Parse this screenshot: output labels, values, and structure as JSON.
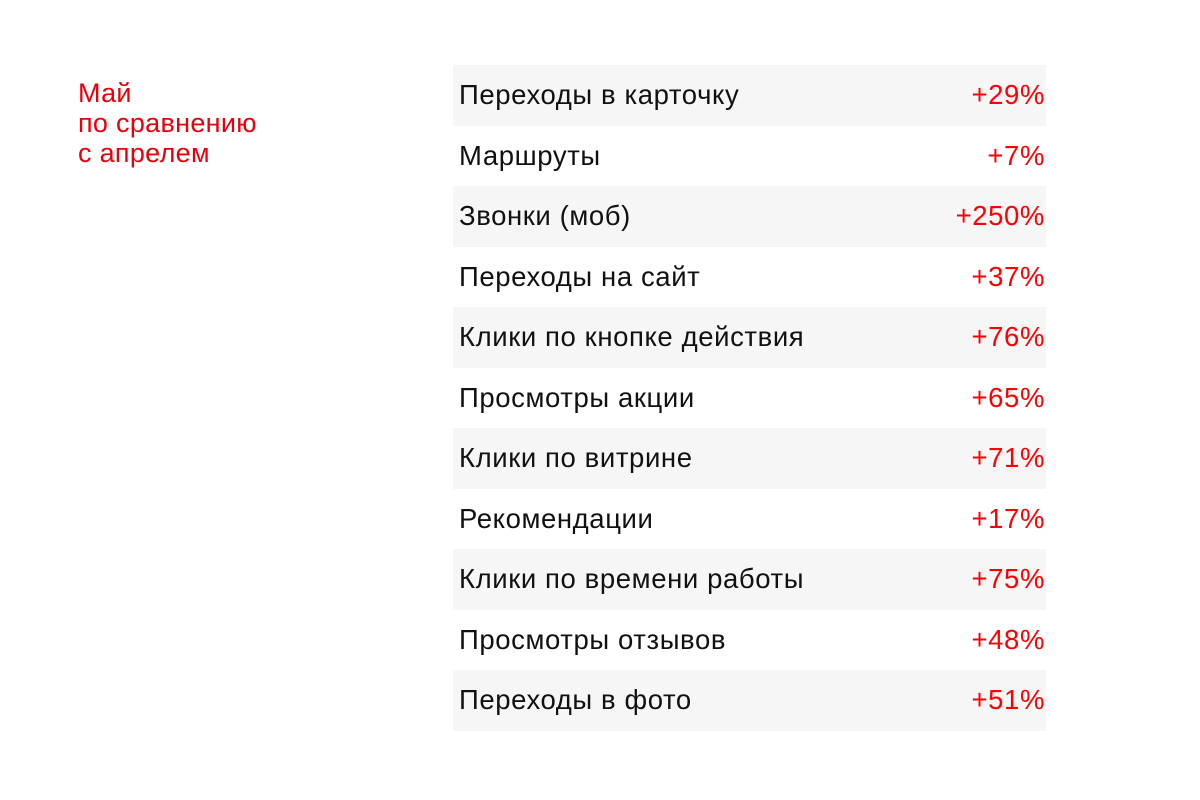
{
  "title": {
    "lines": [
      "Май",
      "по сравнению",
      "с апрелем"
    ]
  },
  "colors": {
    "accent": "#ff0000",
    "stripe": "#f6f6f6",
    "text": "#111111"
  },
  "rows": [
    {
      "label": "Переходы в карточку",
      "value": "+29%"
    },
    {
      "label": "Маршруты",
      "value": "+7%"
    },
    {
      "label": "Звонки (моб)",
      "value": "+250%"
    },
    {
      "label": "Переходы на сайт",
      "value": "+37%"
    },
    {
      "label": "Клики по кнопке действия",
      "value": "+76%"
    },
    {
      "label": "Просмотры акции",
      "value": "+65%"
    },
    {
      "label": "Клики по витрине",
      "value": "+71%"
    },
    {
      "label": "Рекомендации",
      "value": "+17%"
    },
    {
      "label": "Клики по времени работы",
      "value": "+75%"
    },
    {
      "label": "Просмотры отзывов",
      "value": "+48%"
    },
    {
      "label": "Переходы в фото",
      "value": "+51%"
    }
  ]
}
